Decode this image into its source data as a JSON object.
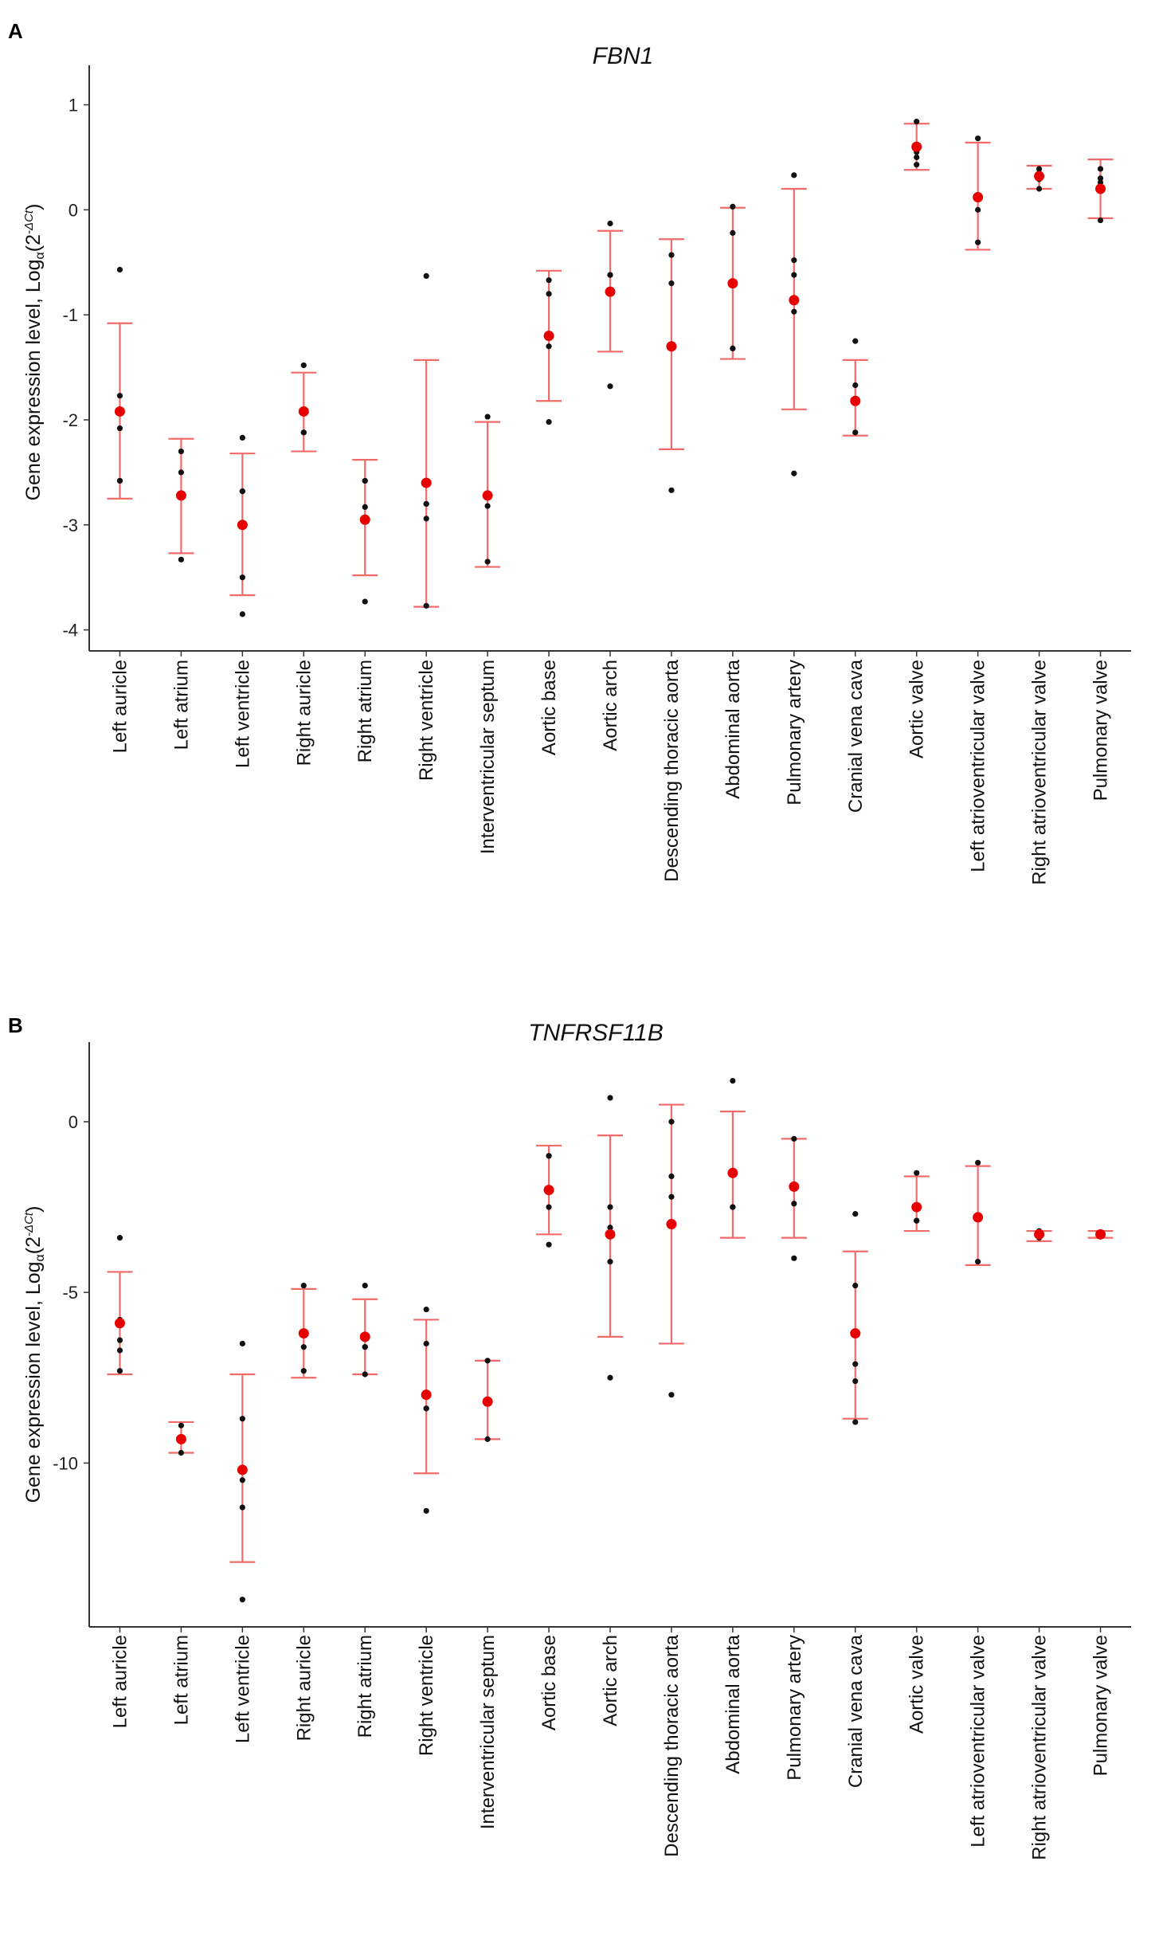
{
  "chart_data": [
    {
      "type": "scatter",
      "panel": "A",
      "title": "FBN1",
      "ylabel": "Gene expression level, Log",
      "ylabel_sub": "α",
      "ylabel_inner": "(2",
      "ylabel_sup": "-ΔCt",
      "ylabel_close": ")",
      "ylim": [
        -4.2,
        1.3
      ],
      "yticks": [
        1,
        0,
        -1,
        -2,
        -3,
        -4
      ],
      "ytick_labels": [
        "1",
        "0",
        "-1",
        "-2",
        "-3",
        "-4"
      ],
      "mean_color": "#e60000",
      "errorbar_color": "#f26b6b",
      "point_color": "#111111",
      "categories": [
        "Left auricle",
        "Left atrium",
        "Left ventricle",
        "Right auricle",
        "Right atrium",
        "Right ventricle",
        "Interventricular septum",
        "Aortic base",
        "Aortic arch",
        "Descending thoracic aorta",
        "Abdominal aorta",
        "Pulmonary artery",
        "Cranial vena cava",
        "Aortic valve",
        "Left atrioventricular valve",
        "Right atrioventricular valve",
        "Pulmonary valve"
      ],
      "series": [
        {
          "name": "mean",
          "values": [
            -1.92,
            -2.72,
            -3.0,
            -1.92,
            -2.95,
            -2.6,
            -2.72,
            -1.2,
            -0.78,
            -1.3,
            -0.7,
            -0.86,
            -1.82,
            0.6,
            0.12,
            0.32,
            0.2
          ]
        },
        {
          "name": "error_lower",
          "values": [
            -2.75,
            -3.27,
            -3.67,
            -2.3,
            -3.48,
            -3.78,
            -3.4,
            -1.82,
            -1.35,
            -2.28,
            -1.42,
            -1.9,
            -2.15,
            0.38,
            -0.38,
            0.2,
            -0.08
          ]
        },
        {
          "name": "error_upper",
          "values": [
            -1.08,
            -2.18,
            -2.32,
            -1.55,
            -2.38,
            -1.43,
            -2.02,
            -0.58,
            -0.2,
            -0.28,
            0.02,
            0.2,
            -1.43,
            0.82,
            0.64,
            0.42,
            0.48
          ]
        }
      ],
      "observations": [
        [
          -0.57,
          -1.77,
          -2.08,
          -2.58,
          -2.58
        ],
        [
          -2.3,
          -2.5,
          -3.33
        ],
        [
          -2.17,
          -2.68,
          -2.68,
          -3.5,
          -3.85
        ],
        [
          -1.48,
          -2.12,
          -2.12
        ],
        [
          -2.58,
          -2.58,
          -2.83,
          -3.73
        ],
        [
          -0.63,
          -2.8,
          -2.8,
          -2.94,
          -3.77
        ],
        [
          -1.97,
          -2.82,
          -3.35
        ],
        [
          -0.67,
          -0.8,
          -1.3,
          -2.02
        ],
        [
          -0.13,
          -0.62,
          -0.62,
          -0.78,
          -1.68
        ],
        [
          -0.43,
          -0.7,
          -2.67
        ],
        [
          0.03,
          -0.22,
          -1.32,
          -1.32
        ],
        [
          0.33,
          -0.48,
          -0.62,
          -0.97,
          -2.51
        ],
        [
          -1.25,
          -1.67,
          -2.12
        ],
        [
          0.84,
          0.55,
          0.5,
          0.43
        ],
        [
          0.68,
          0.0,
          -0.31
        ],
        [
          0.39,
          0.35,
          0.32,
          0.29,
          0.2
        ],
        [
          0.39,
          0.3,
          0.26,
          -0.1
        ]
      ]
    },
    {
      "type": "scatter",
      "panel": "B",
      "title": "TNFRSF11B",
      "ylabel": "Gene expression level, Log",
      "ylabel_sub": "α",
      "ylabel_inner": "(2",
      "ylabel_sup": "-ΔCt",
      "ylabel_close": ")",
      "ylim": [
        -14.8,
        2.1
      ],
      "yticks": [
        0,
        -5,
        -10
      ],
      "ytick_labels": [
        "0",
        "-5",
        "-10"
      ],
      "mean_color": "#e60000",
      "errorbar_color": "#f26b6b",
      "point_color": "#111111",
      "categories": [
        "Left auricle",
        "Left atrium",
        "Left ventricle",
        "Right auricle",
        "Right atrium",
        "Right ventricle",
        "Interventricular septum",
        "Aortic base",
        "Aortic arch",
        "Descending thoracic aorta",
        "Abdominal aorta",
        "Pulmonary artery",
        "Cranial vena cava",
        "Aortic valve",
        "Left atrioventricular valve",
        "Right atrioventricular valve",
        "Pulmonary valve"
      ],
      "series": [
        {
          "name": "mean",
          "values": [
            -5.9,
            -9.3,
            -10.2,
            -6.2,
            -6.3,
            -8.0,
            -8.2,
            -2.0,
            -3.3,
            -3.0,
            -1.5,
            -1.9,
            -6.2,
            -2.5,
            -2.8,
            -3.3,
            -3.3
          ]
        },
        {
          "name": "error_lower",
          "values": [
            -7.4,
            -9.7,
            -12.9,
            -7.5,
            -7.4,
            -10.3,
            -9.3,
            -3.3,
            -6.3,
            -6.5,
            -3.4,
            -3.4,
            -8.7,
            -3.2,
            -4.2,
            -3.5,
            -3.4
          ]
        },
        {
          "name": "error_upper",
          "values": [
            -4.4,
            -8.8,
            -7.4,
            -4.9,
            -5.2,
            -5.8,
            -7.0,
            -0.7,
            -0.4,
            0.5,
            0.3,
            -0.5,
            -3.8,
            -1.6,
            -1.3,
            -3.2,
            -3.2
          ]
        }
      ],
      "observations": [
        [
          -3.4,
          -5.8,
          -6.4,
          -6.7,
          -7.3
        ],
        [
          -8.9,
          -9.7
        ],
        [
          -6.5,
          -8.7,
          -10.5,
          -11.3,
          -14.0
        ],
        [
          -4.8,
          -6.6,
          -7.3
        ],
        [
          -4.8,
          -6.6,
          -6.6,
          -7.4
        ],
        [
          -5.5,
          -6.5,
          -8.4,
          -8.4,
          -11.4
        ],
        [
          -7.0,
          -9.3
        ],
        [
          -1.0,
          -1.0,
          -2.5,
          -3.6
        ],
        [
          0.7,
          -2.5,
          -3.1,
          -4.1,
          -7.5
        ],
        [
          0.0,
          -1.6,
          -2.2,
          -8.0
        ],
        [
          1.2,
          -2.5,
          -2.5
        ],
        [
          -0.5,
          -2.4,
          -4.0
        ],
        [
          -2.7,
          -4.8,
          -7.1,
          -7.6,
          -8.8
        ],
        [
          -1.5,
          -2.9,
          -2.9
        ],
        [
          -1.2,
          -4.1
        ],
        [
          -3.2,
          -3.3,
          -3.4
        ],
        [
          -3.3,
          -3.3
        ]
      ]
    }
  ]
}
